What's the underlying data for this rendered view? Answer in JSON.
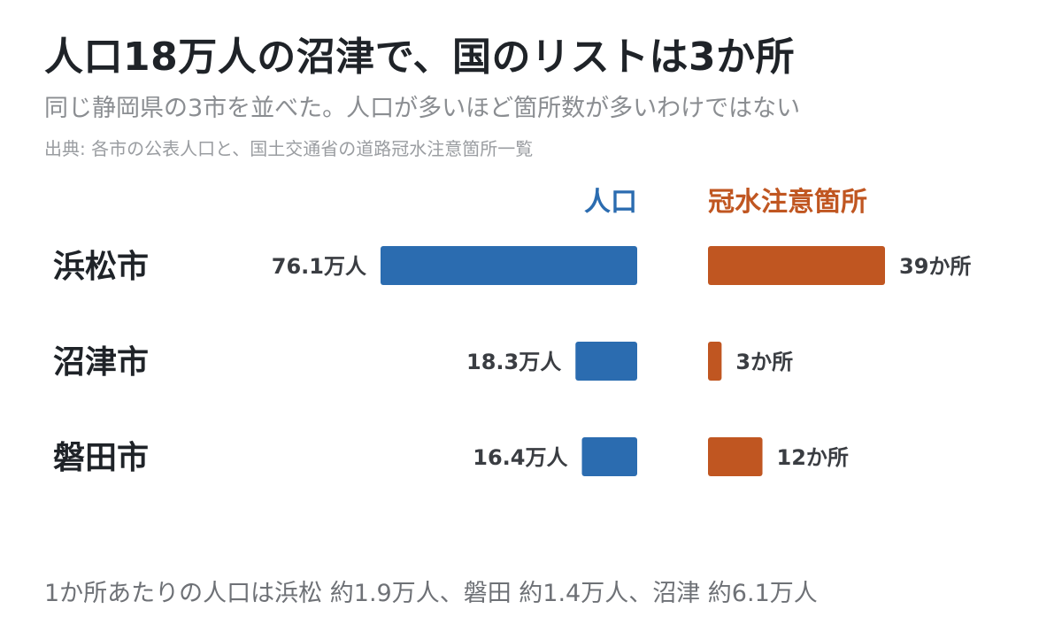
{
  "header": {
    "title": "人口18万人の沼津で、国のリストは3か所",
    "subtitle": "同じ静岡県の3市を並べた。人口が多いほど箇所数が多いわけではない",
    "source": "出典: 各市の公表人口と、国土交通省の道路冠水注意箇所一覧"
  },
  "footer": {
    "note": "1か所あたりの人口は浜松 約1.9万人、磐田 約1.4万人、沼津 約6.1万人"
  },
  "colors": {
    "population": "#2b6cb0",
    "flood": "#c05621"
  },
  "chart_data": {
    "type": "bar",
    "categories": [
      "浜松市",
      "沼津市",
      "磐田市"
    ],
    "series": [
      {
        "name": "人口",
        "values": [
          76.1,
          18.3,
          16.4
        ],
        "value_labels": [
          "76.1万人",
          "18.3万人",
          "16.4万人"
        ],
        "direction": "left"
      },
      {
        "name": "冠水注意箇所",
        "values": [
          39,
          3,
          12
        ],
        "value_labels": [
          "39か所",
          "3か所",
          "12か所"
        ],
        "direction": "right"
      }
    ]
  }
}
